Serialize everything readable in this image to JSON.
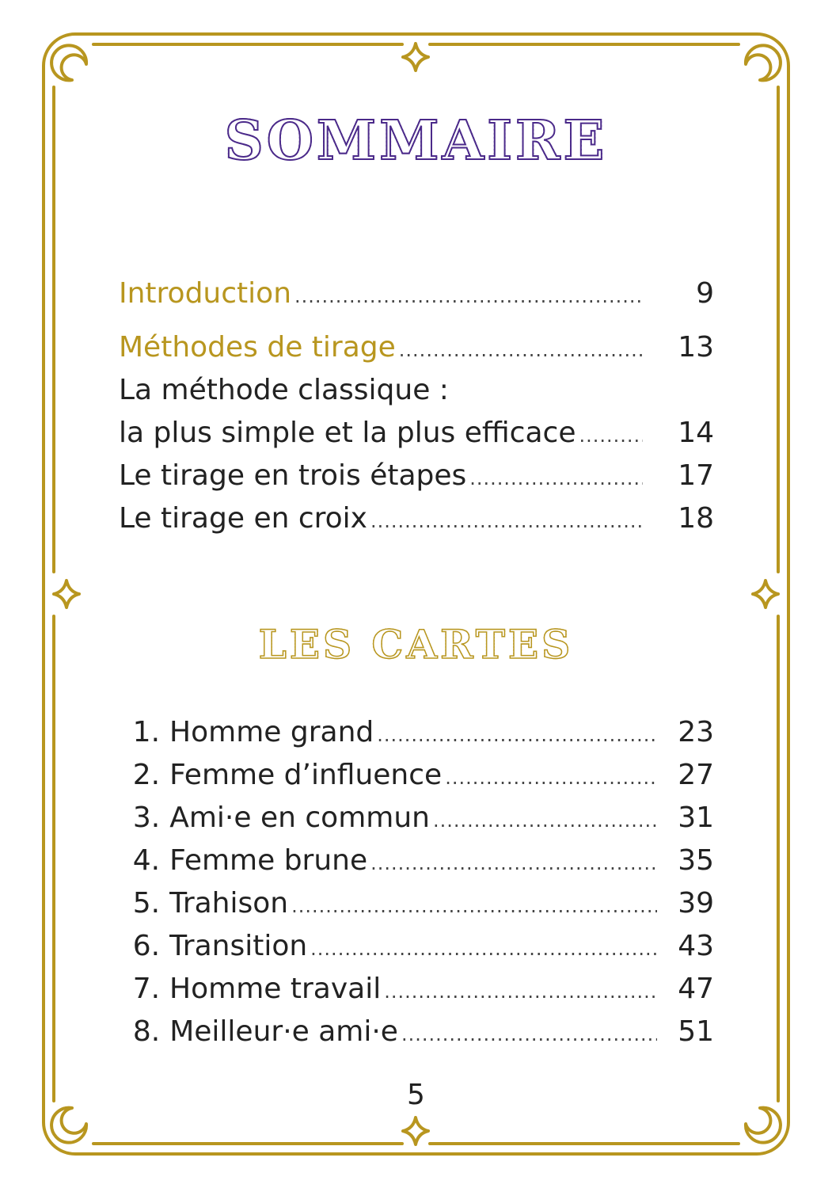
{
  "title": "SOMMAIRE",
  "section_title": "LES CARTES",
  "colors": {
    "gold": "#b8961f",
    "purple": "#4b2a8a"
  },
  "icons": [
    "moon-icon",
    "four-point-star-icon"
  ],
  "toc": [
    {
      "label": "Introduction",
      "page": "9",
      "style": "heading"
    },
    {
      "label": "Méthodes de tirage",
      "page": "13",
      "style": "heading"
    },
    {
      "label": "La méthode classique :",
      "page": "",
      "style": "normal"
    },
    {
      "label": "la plus simple et la plus efficace",
      "page": "14",
      "style": "normal"
    },
    {
      "label": "Le tirage en trois étapes",
      "page": "17",
      "style": "normal"
    },
    {
      "label": "Le tirage en croix",
      "page": "18",
      "style": "normal"
    }
  ],
  "cards": [
    {
      "num": "1.",
      "label": "Homme grand",
      "page": "23"
    },
    {
      "num": "2.",
      "label": "Femme d’influence",
      "page": "27"
    },
    {
      "num": "3.",
      "label": "Ami·e en commun",
      "page": "31"
    },
    {
      "num": "4.",
      "label": "Femme brune",
      "page": "35"
    },
    {
      "num": "5.",
      "label": "Trahison",
      "page": "39"
    },
    {
      "num": "6.",
      "label": "Transition",
      "page": "43"
    },
    {
      "num": "7.",
      "label": "Homme travail",
      "page": "47"
    },
    {
      "num": "8.",
      "label": "Meilleur·e ami·e",
      "page": "51"
    }
  ],
  "page_number": "5"
}
